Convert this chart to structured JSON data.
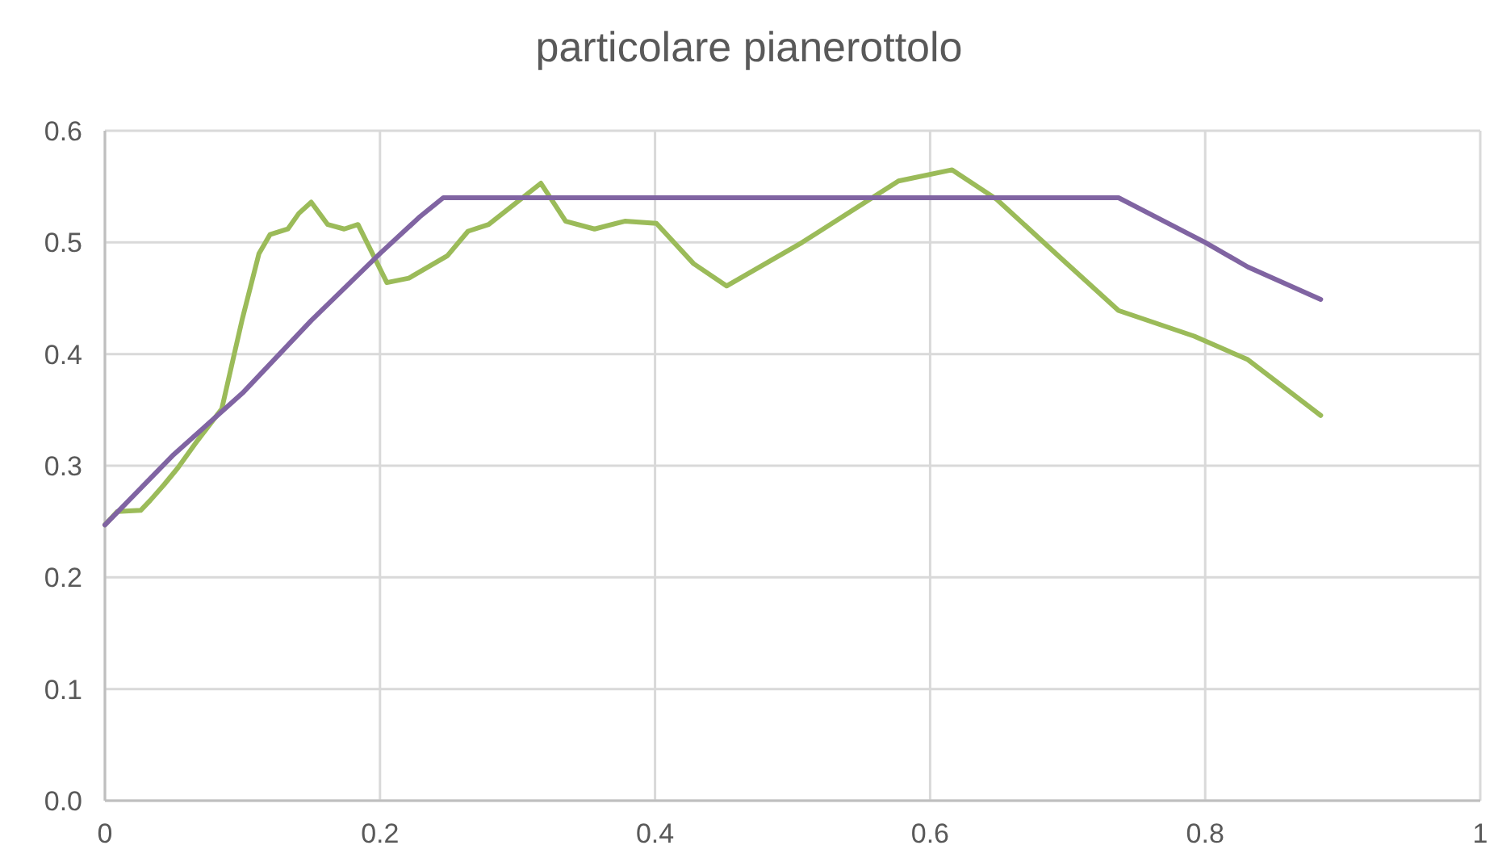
{
  "chart_data": {
    "type": "line",
    "title": "particolare pianerottolo",
    "xlim": [
      0,
      1
    ],
    "xticks": [
      0,
      0.2,
      0.4,
      0.6,
      0.8,
      1
    ],
    "ylim": [
      0,
      0.6
    ],
    "yticks": [
      {
        "value": 0,
        "label": "0.0"
      },
      0.1,
      0.2,
      0.3,
      0.4,
      0.5,
      0.6
    ],
    "grid": true,
    "marker": "none",
    "line_style": "solid",
    "series": [
      {
        "color": "#9bbb59",
        "x": [
          0,
          0.009,
          0.026,
          0.033,
          0.043,
          0.053,
          0.067,
          0.085,
          0.092,
          0.1,
          0.112,
          0.12,
          0.133,
          0.141,
          0.15,
          0.162,
          0.174,
          0.184,
          0.205,
          0.221,
          0.249,
          0.264,
          0.279,
          0.317,
          0.335,
          0.356,
          0.378,
          0.401,
          0.428,
          0.452,
          0.507,
          0.577,
          0.616,
          0.648,
          0.695,
          0.737,
          0.792,
          0.831,
          0.884
        ],
        "values": [
          0.247,
          0.259,
          0.26,
          0.269,
          0.283,
          0.298,
          0.322,
          0.351,
          0.389,
          0.432,
          0.49,
          0.507,
          0.512,
          0.526,
          0.536,
          0.516,
          0.512,
          0.516,
          0.464,
          0.468,
          0.488,
          0.51,
          0.516,
          0.553,
          0.519,
          0.512,
          0.519,
          0.517,
          0.481,
          0.461,
          0.5,
          0.555,
          0.565,
          0.539,
          0.486,
          0.439,
          0.416,
          0.395,
          0.345
        ]
      },
      {
        "color": "#8064a2",
        "x": [
          0,
          0.05,
          0.1,
          0.15,
          0.2,
          0.229,
          0.246,
          0.737,
          0.8,
          0.831,
          0.884
        ],
        "values": [
          0.247,
          0.31,
          0.365,
          0.43,
          0.49,
          0.523,
          0.54,
          0.54,
          0.5,
          0.478,
          0.449
        ]
      }
    ]
  }
}
